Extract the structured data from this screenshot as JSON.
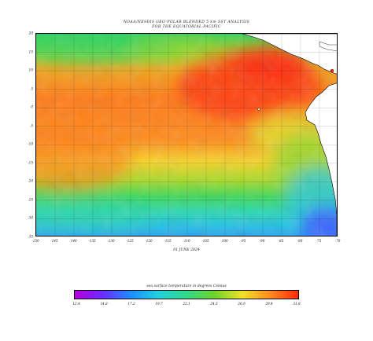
{
  "header": {
    "title_line1": "NOAA/NESDIS GEO-POLAR BLENDED 5 km SST ANALYSIS",
    "title_line2": "FOR THE EQUATORIAL PACIFIC"
  },
  "map": {
    "lat_ticks": [
      "20",
      "15",
      "10",
      "5",
      "0",
      "-5",
      "-10",
      "-15",
      "-20",
      "-25",
      "-30",
      "-35"
    ],
    "lon_ticks": [
      "-150",
      "-145",
      "-140",
      "-135",
      "-130",
      "-125",
      "-120",
      "-115",
      "-110",
      "-105",
      "-100",
      "-95",
      "-90",
      "-85",
      "-80",
      "-75",
      "-70"
    ],
    "lat_range": [
      -35,
      20
    ],
    "lon_range": [
      -150,
      -70
    ],
    "date_label": "01 JUNE 2024"
  },
  "colorbar": {
    "title": "sea surface temperature in degrees Celsius",
    "tick_labels": [
      "12.4",
      "14.8",
      "17.2",
      "19.7",
      "22.1",
      "24.5",
      "26.9",
      "29.4",
      "31.8"
    ],
    "colors": [
      "#b800d8",
      "#6a2cff",
      "#1e8cff",
      "#23d2e0",
      "#33d98a",
      "#6ed42b",
      "#f0e22a",
      "#ff8a1f",
      "#ff2a0a"
    ]
  }
}
